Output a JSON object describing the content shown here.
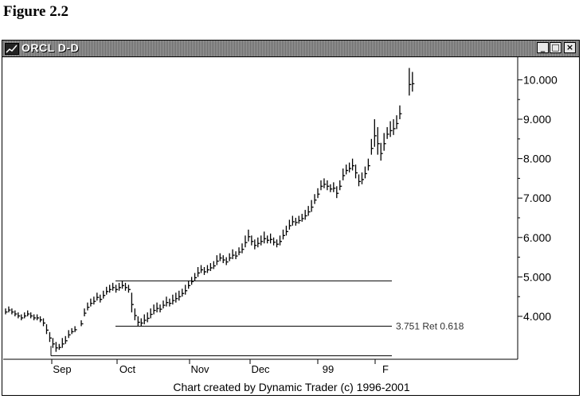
{
  "figure_caption": "Figure 2.2",
  "window": {
    "title": "ORCL D-D",
    "icon": "chart-app-icon",
    "controls": {
      "minimize": "_",
      "maximize": "□",
      "close": "×"
    }
  },
  "credit": "Chart created by Dynamic Trader (c) 1996-2001",
  "chart_data": {
    "type": "ohlc-bar",
    "title": "ORCL D-D",
    "x_tick_labels": [
      "Sep",
      "Oct",
      "Nov",
      "Dec",
      "99",
      "F"
    ],
    "y_tick_labels": [
      "4.000",
      "5.000",
      "6.000",
      "7.000",
      "8.000",
      "9.000",
      "10.000"
    ],
    "y_ticks": [
      4,
      5,
      6,
      7,
      8,
      9,
      10
    ],
    "ylim": [
      2.9,
      10.4
    ],
    "grid": false,
    "y_axis_side": "right",
    "horizontal_lines": [
      {
        "value": 4.9,
        "label": ""
      },
      {
        "value": 3.751,
        "label": "3.751 Ret 0.618"
      },
      {
        "value": 3.0,
        "label": ""
      }
    ],
    "bars": [
      {
        "h": 4.2,
        "l": 4.05
      },
      {
        "h": 4.25,
        "l": 4.1
      },
      {
        "h": 4.2,
        "l": 4.05
      },
      {
        "h": 4.15,
        "l": 4.0
      },
      {
        "h": 4.1,
        "l": 3.95
      },
      {
        "h": 4.05,
        "l": 3.9
      },
      {
        "h": 4.1,
        "l": 3.95
      },
      {
        "h": 4.15,
        "l": 4.0
      },
      {
        "h": 4.1,
        "l": 3.95
      },
      {
        "h": 4.05,
        "l": 3.9
      },
      {
        "h": 4.05,
        "l": 3.9
      },
      {
        "h": 4.0,
        "l": 3.85
      },
      {
        "h": 3.95,
        "l": 3.75
      },
      {
        "h": 3.8,
        "l": 3.55
      },
      {
        "h": 3.6,
        "l": 3.35
      },
      {
        "h": 3.45,
        "l": 3.2
      },
      {
        "h": 3.35,
        "l": 3.1
      },
      {
        "h": 3.3,
        "l": 3.15
      },
      {
        "h": 3.45,
        "l": 3.2
      },
      {
        "h": 3.5,
        "l": 3.3
      },
      {
        "h": 3.65,
        "l": 3.45
      },
      {
        "h": 3.7,
        "l": 3.55
      },
      {
        "h": 3.75,
        "l": 3.6
      },
      {
        "h": null,
        "l": null
      },
      {
        "h": 3.9,
        "l": 3.75
      },
      {
        "h": 4.2,
        "l": 4.0
      },
      {
        "h": 4.35,
        "l": 4.15
      },
      {
        "h": 4.45,
        "l": 4.25
      },
      {
        "h": 4.5,
        "l": 4.3
      },
      {
        "h": 4.6,
        "l": 4.4
      },
      {
        "h": 4.55,
        "l": 4.35
      },
      {
        "h": 4.65,
        "l": 4.45
      },
      {
        "h": 4.75,
        "l": 4.55
      },
      {
        "h": 4.8,
        "l": 4.6
      },
      {
        "h": 4.85,
        "l": 4.65
      },
      {
        "h": 4.8,
        "l": 4.6
      },
      {
        "h": 4.85,
        "l": 4.65
      },
      {
        "h": 4.9,
        "l": 4.7
      },
      {
        "h": 4.85,
        "l": 4.65
      },
      {
        "h": 4.8,
        "l": 4.6
      },
      {
        "h": 4.6,
        "l": 4.1
      },
      {
        "h": 4.2,
        "l": 3.9
      },
      {
        "h": 4.0,
        "l": 3.75
      },
      {
        "h": 3.95,
        "l": 3.75
      },
      {
        "h": 4.05,
        "l": 3.8
      },
      {
        "h": 4.1,
        "l": 3.85
      },
      {
        "h": 4.2,
        "l": 3.95
      },
      {
        "h": 4.3,
        "l": 4.05
      },
      {
        "h": 4.35,
        "l": 4.1
      },
      {
        "h": 4.3,
        "l": 4.1
      },
      {
        "h": 4.4,
        "l": 4.2
      },
      {
        "h": 4.5,
        "l": 4.25
      },
      {
        "h": 4.45,
        "l": 4.25
      },
      {
        "h": 4.55,
        "l": 4.3
      },
      {
        "h": 4.6,
        "l": 4.35
      },
      {
        "h": 4.65,
        "l": 4.4
      },
      {
        "h": 4.7,
        "l": 4.5
      },
      {
        "h": 4.8,
        "l": 4.55
      },
      {
        "h": 4.9,
        "l": 4.7
      },
      {
        "h": 5.0,
        "l": 4.8
      },
      {
        "h": 5.1,
        "l": 4.9
      },
      {
        "h": 5.25,
        "l": 5.0
      },
      {
        "h": 5.3,
        "l": 5.1
      },
      {
        "h": 5.25,
        "l": 5.05
      },
      {
        "h": 5.3,
        "l": 5.1
      },
      {
        "h": 5.35,
        "l": 5.15
      },
      {
        "h": 5.4,
        "l": 5.2
      },
      {
        "h": 5.55,
        "l": 5.3
      },
      {
        "h": 5.6,
        "l": 5.4
      },
      {
        "h": 5.55,
        "l": 5.35
      },
      {
        "h": 5.5,
        "l": 5.3
      },
      {
        "h": 5.6,
        "l": 5.4
      },
      {
        "h": 5.7,
        "l": 5.45
      },
      {
        "h": 5.65,
        "l": 5.45
      },
      {
        "h": 5.75,
        "l": 5.55
      },
      {
        "h": 5.85,
        "l": 5.6
      },
      {
        "h": 6.05,
        "l": 5.75
      },
      {
        "h": 6.2,
        "l": 5.9
      },
      {
        "h": 6.05,
        "l": 5.8
      },
      {
        "h": 5.95,
        "l": 5.7
      },
      {
        "h": 6.0,
        "l": 5.75
      },
      {
        "h": 6.05,
        "l": 5.8
      },
      {
        "h": 6.15,
        "l": 5.85
      },
      {
        "h": 6.05,
        "l": 5.85
      },
      {
        "h": 6.1,
        "l": 5.85
      },
      {
        "h": 6.0,
        "l": 5.8
      },
      {
        "h": 5.95,
        "l": 5.75
      },
      {
        "h": 6.05,
        "l": 5.8
      },
      {
        "h": 6.2,
        "l": 5.95
      },
      {
        "h": 6.3,
        "l": 6.05
      },
      {
        "h": 6.45,
        "l": 6.2
      },
      {
        "h": 6.55,
        "l": 6.3
      },
      {
        "h": 6.5,
        "l": 6.3
      },
      {
        "h": 6.55,
        "l": 6.35
      },
      {
        "h": 6.6,
        "l": 6.4
      },
      {
        "h": 6.7,
        "l": 6.45
      },
      {
        "h": 6.8,
        "l": 6.55
      },
      {
        "h": 6.95,
        "l": 6.65
      },
      {
        "h": 7.1,
        "l": 6.85
      },
      {
        "h": 7.25,
        "l": 7.0
      },
      {
        "h": 7.45,
        "l": 7.2
      },
      {
        "h": 7.5,
        "l": 7.25
      },
      {
        "h": 7.45,
        "l": 7.2
      },
      {
        "h": 7.35,
        "l": 7.15
      },
      {
        "h": 7.4,
        "l": 7.15
      },
      {
        "h": 7.3,
        "l": 7.0
      },
      {
        "h": 7.45,
        "l": 7.2
      },
      {
        "h": 7.75,
        "l": 7.45
      },
      {
        "h": 7.85,
        "l": 7.6
      },
      {
        "h": 7.9,
        "l": 7.65
      },
      {
        "h": 8.0,
        "l": 7.7
      },
      {
        "h": 7.85,
        "l": 7.5
      },
      {
        "h": 7.6,
        "l": 7.3
      },
      {
        "h": 7.65,
        "l": 7.35
      },
      {
        "h": 7.8,
        "l": 7.5
      },
      {
        "h": 8.0,
        "l": 7.7
      },
      {
        "h": 8.5,
        "l": 8.1
      },
      {
        "h": 9.0,
        "l": 8.3
      },
      {
        "h": 8.8,
        "l": 8.1
      },
      {
        "h": 8.4,
        "l": 7.95
      },
      {
        "h": 8.65,
        "l": 8.2
      },
      {
        "h": 8.8,
        "l": 8.5
      },
      {
        "h": 8.95,
        "l": 8.55
      },
      {
        "h": 9.0,
        "l": 8.6
      },
      {
        "h": 9.1,
        "l": 8.75
      },
      {
        "h": 9.35,
        "l": 9.0
      },
      {
        "h": null,
        "l": null
      },
      {
        "h": null,
        "l": null
      },
      {
        "h": 10.3,
        "l": 9.6
      },
      {
        "h": 10.2,
        "l": 9.7
      }
    ]
  }
}
